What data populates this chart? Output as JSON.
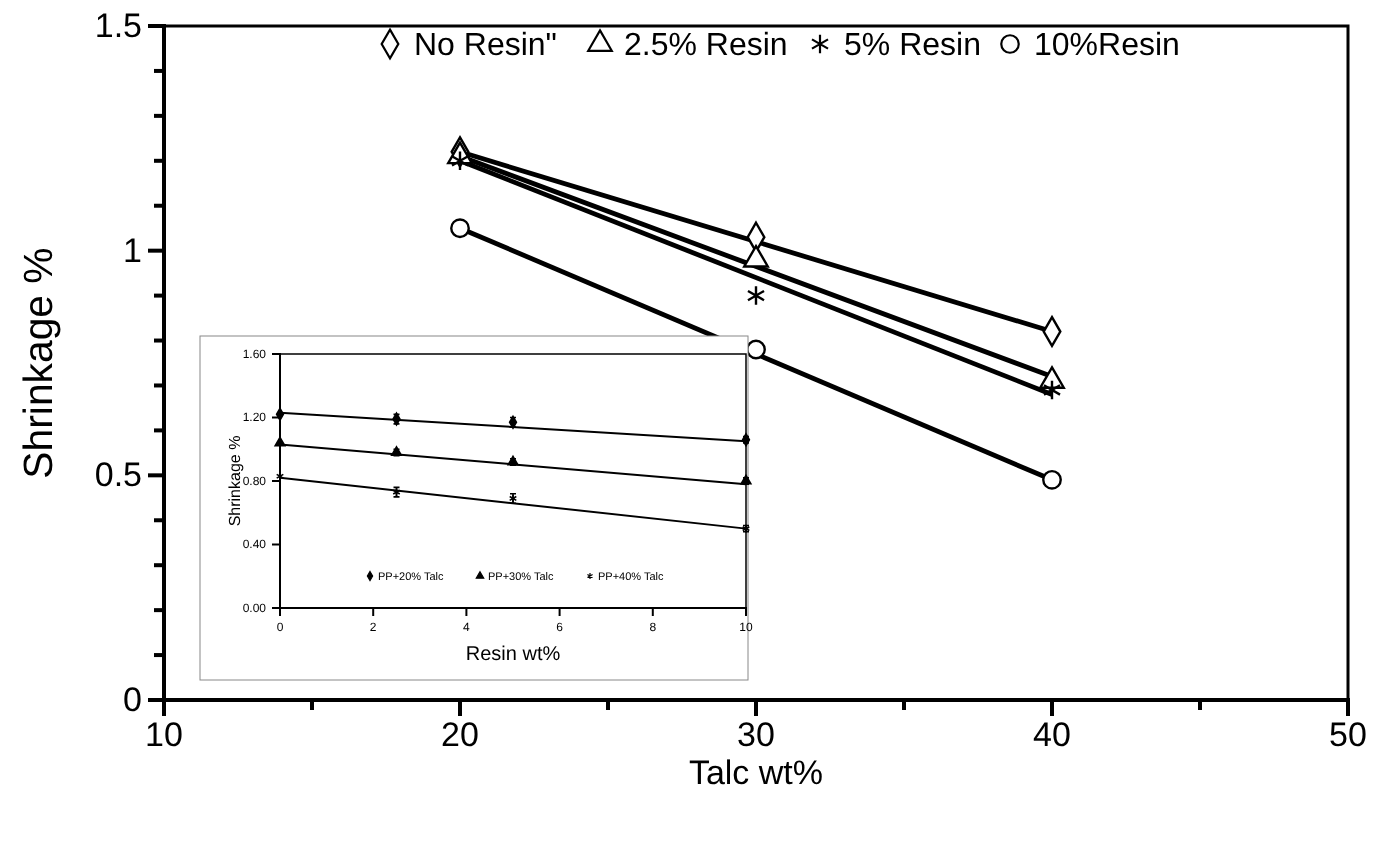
{
  "chart_data": [
    {
      "type": "scatter",
      "xlabel": "Talc wt%",
      "ylabel": "Shrinkage %",
      "x": [
        20,
        30,
        40
      ],
      "xlim": [
        10,
        50
      ],
      "xticks": [
        10,
        {
          "value": 15,
          "label": null
        },
        20,
        {
          "value": 25,
          "label": null
        },
        30,
        {
          "value": 35,
          "label": null
        },
        40,
        {
          "value": 45,
          "label": null
        },
        50
      ],
      "ylim": [
        0,
        1.5
      ],
      "yticks": [
        0,
        {
          "value": 0.1,
          "label": null
        },
        {
          "value": 0.2,
          "label": null
        },
        {
          "value": 0.3,
          "label": null
        },
        {
          "value": 0.4,
          "label": null
        },
        0.5,
        {
          "value": 0.6,
          "label": null
        },
        {
          "value": 0.7,
          "label": null
        },
        {
          "value": 0.8,
          "label": null
        },
        {
          "value": 0.9,
          "label": null
        },
        1,
        {
          "value": 1.1,
          "label": null
        },
        {
          "value": 1.2,
          "label": null
        },
        {
          "value": 1.3,
          "label": null
        },
        {
          "value": 1.4,
          "label": null
        },
        1.5
      ],
      "grid": false,
      "legend": "top",
      "series": [
        {
          "name": "No Resin\"",
          "color": "#000000",
          "marker": "diamond",
          "values": [
            1.22,
            1.03,
            0.82
          ]
        },
        {
          "name": "2.5% Resin",
          "color": "#000000",
          "marker": "triangle",
          "values": [
            1.21,
            0.98,
            0.71
          ]
        },
        {
          "name": "5% Resin",
          "color": "#000000",
          "marker": "cross",
          "values": [
            1.2,
            0.9,
            0.69
          ]
        },
        {
          "name": "10%Resin",
          "color": "#000000",
          "marker": "circle",
          "values": [
            1.05,
            0.78,
            0.49
          ]
        },
        {
          "type": "line",
          "color": "#000000",
          "x": [
            20,
            40
          ],
          "values": [
            1.22,
            0.82
          ]
        },
        {
          "type": "line",
          "color": "#000000",
          "x": [
            20,
            40
          ],
          "values": [
            1.21,
            0.72
          ]
        },
        {
          "type": "line",
          "color": "#000000",
          "x": [
            20,
            40
          ],
          "values": [
            1.2,
            0.68
          ]
        },
        {
          "type": "line",
          "color": "#000000",
          "x": [
            20,
            40
          ],
          "values": [
            1.05,
            0.49
          ]
        }
      ]
    },
    {
      "type": "scatter",
      "xlabel": "Resin wt%",
      "ylabel": "Shrinkage %",
      "x": [
        0,
        2.5,
        5,
        10
      ],
      "xlim": [
        0,
        10
      ],
      "xticks": [
        0,
        2,
        4,
        6,
        8,
        10
      ],
      "ylim": [
        0,
        1.6
      ],
      "yticks": [
        {
          "value": 0,
          "label": "0.00"
        },
        {
          "value": 0.4,
          "label": "0.40"
        },
        {
          "value": 0.8,
          "label": "0.80"
        },
        {
          "value": 1.2,
          "label": "1.20"
        },
        {
          "value": 1.6,
          "label": "1.60"
        }
      ],
      "grid": false,
      "legend": "bottom",
      "series": [
        {
          "name": "PP+20% Talc",
          "color": "#000000",
          "marker": "diamond",
          "values": [
            1.22,
            1.19,
            1.17,
            1.06
          ],
          "errors": [
            null,
            0.03,
            0.03,
            0.02
          ]
        },
        {
          "name": "PP+30% Talc",
          "color": "#000000",
          "marker": "triangle",
          "values": [
            1.04,
            0.98,
            0.92,
            0.8
          ],
          "errors": [
            null,
            0.02,
            0.02,
            0.02
          ]
        },
        {
          "name": "PP+40% Talc",
          "color": "#000000",
          "marker": "cross",
          "values": [
            0.83,
            0.73,
            0.69,
            0.5
          ],
          "errors": [
            null,
            0.03,
            0.03,
            0.02
          ]
        },
        {
          "type": "line",
          "color": "#000000",
          "x": [
            0,
            10
          ],
          "values": [
            1.23,
            1.05
          ]
        },
        {
          "type": "line",
          "color": "#000000",
          "x": [
            0,
            10
          ],
          "values": [
            1.03,
            0.78
          ]
        },
        {
          "type": "line",
          "color": "#000000",
          "x": [
            0,
            10
          ],
          "values": [
            0.82,
            0.5
          ]
        }
      ]
    }
  ]
}
